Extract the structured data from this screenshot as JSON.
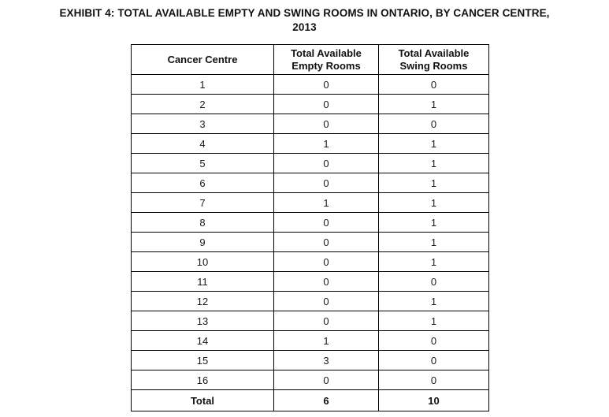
{
  "title": {
    "line1": "EXHIBIT 4: TOTAL AVAILABLE EMPTY AND SWING ROOMS IN ONTARIO, BY CANCER CENTRE,",
    "line2": "2013"
  },
  "table": {
    "headers": [
      "Cancer Centre",
      "Total Available Empty Rooms",
      "Total Available Swing Rooms"
    ],
    "rows": [
      {
        "centre": "1",
        "empty": "0",
        "swing": "0"
      },
      {
        "centre": "2",
        "empty": "0",
        "swing": "1"
      },
      {
        "centre": "3",
        "empty": "0",
        "swing": "0"
      },
      {
        "centre": "4",
        "empty": "1",
        "swing": "1"
      },
      {
        "centre": "5",
        "empty": "0",
        "swing": "1"
      },
      {
        "centre": "6",
        "empty": "0",
        "swing": "1"
      },
      {
        "centre": "7",
        "empty": "1",
        "swing": "1"
      },
      {
        "centre": "8",
        "empty": "0",
        "swing": "1"
      },
      {
        "centre": "9",
        "empty": "0",
        "swing": "1"
      },
      {
        "centre": "10",
        "empty": "0",
        "swing": "1"
      },
      {
        "centre": "11",
        "empty": "0",
        "swing": "0"
      },
      {
        "centre": "12",
        "empty": "0",
        "swing": "1"
      },
      {
        "centre": "13",
        "empty": "0",
        "swing": "1"
      },
      {
        "centre": "14",
        "empty": "1",
        "swing": "0"
      },
      {
        "centre": "15",
        "empty": "3",
        "swing": "0"
      },
      {
        "centre": "16",
        "empty": "0",
        "swing": "0"
      }
    ],
    "total": {
      "label": "Total",
      "empty": "6",
      "swing": "10"
    }
  },
  "colors": {
    "text": "#111111",
    "border": "#000000",
    "background": "#ffffff"
  }
}
